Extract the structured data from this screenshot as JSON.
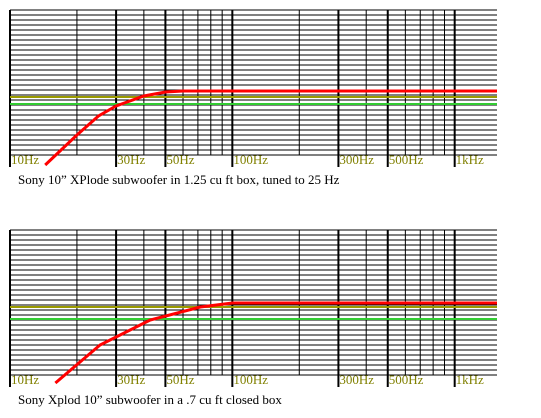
{
  "chart_data": [
    {
      "type": "line",
      "title": "Sony 10” XPlode subwoofer in 1.25 cu ft box, tuned to 25 Hz",
      "log_x": true,
      "xlim": [
        10,
        1550
      ],
      "ylim": [
        0,
        29
      ],
      "grid": true,
      "xticks": [
        {
          "value": 10,
          "label": "10Hz"
        },
        {
          "value": 30,
          "label": "30Hz"
        },
        {
          "value": 50,
          "label": "50Hz"
        },
        {
          "value": 100,
          "label": "100Hz"
        },
        {
          "value": 300,
          "label": "300Hz"
        },
        {
          "value": 500,
          "label": "500Hz"
        },
        {
          "value": 1000,
          "label": "1kHz"
        }
      ],
      "series": [
        {
          "color": "#9b9b00",
          "x": [
            10,
            1550
          ],
          "values": [
            11.6,
            11.6
          ]
        },
        {
          "color": "#33cc33",
          "x": [
            10,
            1550
          ],
          "values": [
            10.2,
            10.2
          ]
        },
        {
          "color": "#ff0000",
          "x": [
            14.4,
            20,
            25,
            30,
            40,
            50,
            60,
            1550
          ],
          "values": [
            -2,
            4,
            7.8,
            9.8,
            11.8,
            12.6,
            12.8,
            12.8
          ]
        }
      ]
    },
    {
      "type": "line",
      "title": "Sony Xplod 10” subwoofer in a .7 cu ft closed box",
      "log_x": true,
      "xlim": [
        10,
        1550
      ],
      "ylim": [
        0,
        29
      ],
      "grid": true,
      "xticks": [
        {
          "value": 10,
          "label": "10Hz"
        },
        {
          "value": 30,
          "label": "30Hz"
        },
        {
          "value": 50,
          "label": "50Hz"
        },
        {
          "value": 100,
          "label": "100Hz"
        },
        {
          "value": 300,
          "label": "300Hz"
        },
        {
          "value": 500,
          "label": "500Hz"
        },
        {
          "value": 1000,
          "label": "1kHz"
        }
      ],
      "series": [
        {
          "color": "#9b9b00",
          "x": [
            10,
            1550
          ],
          "values": [
            13.6,
            13.6
          ]
        },
        {
          "color": "#33cc33",
          "x": [
            10,
            1550
          ],
          "values": [
            11.2,
            11.2
          ]
        },
        {
          "color": "#ff0000",
          "x": [
            16,
            25.4,
            42.7,
            71.8,
            100,
            1550
          ],
          "values": [
            -1.6,
            6,
            11,
            13.6,
            14.4,
            14.4
          ]
        }
      ]
    }
  ]
}
